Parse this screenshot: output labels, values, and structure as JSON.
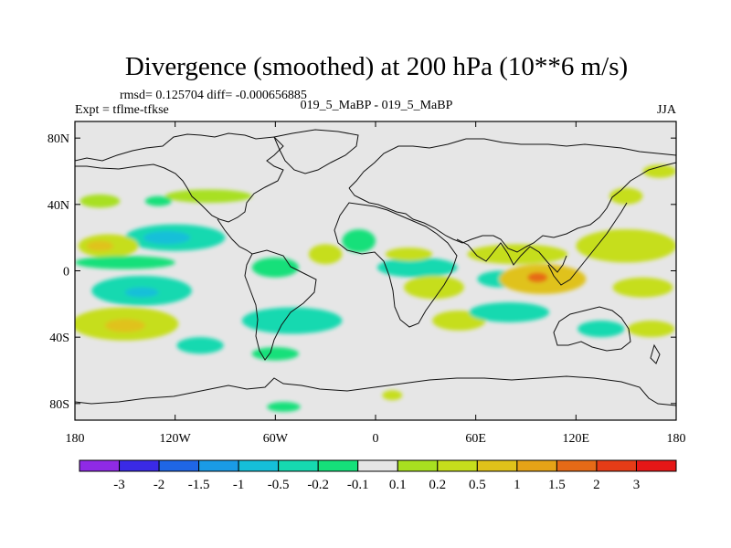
{
  "chart_data": {
    "type": "heatmap",
    "title": "Divergence (smoothed) at 200 hPa (10**6 m/s)",
    "stats_left": "rmsd= 0.125704 diff= -0.000656885",
    "expt_label": "Expt = tflme-tfkse",
    "case_label": "019_5_MaBP - 019_5_MaBP",
    "season_label": "JJA",
    "xlim": [
      -180,
      180
    ],
    "ylim": [
      -90,
      90
    ],
    "x_ticks": [
      {
        "value": -180,
        "label": "180"
      },
      {
        "value": -120,
        "label": "120W"
      },
      {
        "value": -60,
        "label": "60W"
      },
      {
        "value": 0,
        "label": "0"
      },
      {
        "value": 60,
        "label": "60E"
      },
      {
        "value": 120,
        "label": "120E"
      },
      {
        "value": 180,
        "label": "180"
      }
    ],
    "y_ticks": [
      {
        "value": 80,
        "label": "80N"
      },
      {
        "value": 40,
        "label": "40N"
      },
      {
        "value": 0,
        "label": "0"
      },
      {
        "value": -40,
        "label": "40S"
      },
      {
        "value": -80,
        "label": "80S"
      }
    ],
    "colorbar": {
      "colors": [
        "#8f2ae6",
        "#3a2ae6",
        "#1f66e6",
        "#1a9be6",
        "#15bfd9",
        "#16d9b0",
        "#15e07a",
        "#e6e6e6",
        "#a8e020",
        "#c6de1c",
        "#e0c21a",
        "#e6a317",
        "#e66a17",
        "#e63c17",
        "#e61717"
      ],
      "labels": [
        "-3",
        "-2",
        "-1.5",
        "-1",
        "-0.5",
        "-0.2",
        "-0.1",
        "0.1",
        "0.2",
        "0.5",
        "1",
        "1.5",
        "2",
        "3"
      ]
    },
    "field_blobs": [
      {
        "lon": -100,
        "lat": 45,
        "rx": 26,
        "ry": 4,
        "level": 8
      },
      {
        "lon": -165,
        "lat": 42,
        "rx": 12,
        "ry": 4,
        "level": 8
      },
      {
        "lon": -130,
        "lat": 42,
        "rx": 8,
        "ry": 3,
        "level": 6
      },
      {
        "lon": -120,
        "lat": 20,
        "rx": 30,
        "ry": 8,
        "level": 5
      },
      {
        "lon": -125,
        "lat": 20,
        "rx": 14,
        "ry": 4,
        "level": 4
      },
      {
        "lon": -160,
        "lat": 15,
        "rx": 18,
        "ry": 7,
        "level": 9
      },
      {
        "lon": -165,
        "lat": 15,
        "rx": 8,
        "ry": 3,
        "level": 10
      },
      {
        "lon": -150,
        "lat": 5,
        "rx": 30,
        "ry": 4,
        "level": 6
      },
      {
        "lon": -140,
        "lat": -12,
        "rx": 30,
        "ry": 9,
        "level": 5
      },
      {
        "lon": -140,
        "lat": -13,
        "rx": 10,
        "ry": 3,
        "level": 4
      },
      {
        "lon": -150,
        "lat": -32,
        "rx": 32,
        "ry": 10,
        "level": 9
      },
      {
        "lon": -150,
        "lat": -33,
        "rx": 12,
        "ry": 4,
        "level": 10
      },
      {
        "lon": -105,
        "lat": -45,
        "rx": 14,
        "ry": 5,
        "level": 5
      },
      {
        "lon": -60,
        "lat": 2,
        "rx": 14,
        "ry": 6,
        "level": 6
      },
      {
        "lon": -30,
        "lat": 10,
        "rx": 10,
        "ry": 6,
        "level": 9
      },
      {
        "lon": -10,
        "lat": 18,
        "rx": 10,
        "ry": 7,
        "level": 6
      },
      {
        "lon": -50,
        "lat": -30,
        "rx": 30,
        "ry": 8,
        "level": 5
      },
      {
        "lon": -60,
        "lat": -50,
        "rx": 14,
        "ry": 4,
        "level": 6
      },
      {
        "lon": 25,
        "lat": 2,
        "rx": 24,
        "ry": 6,
        "level": 5
      },
      {
        "lon": 20,
        "lat": 10,
        "rx": 14,
        "ry": 4,
        "level": 9
      },
      {
        "lon": 35,
        "lat": -10,
        "rx": 18,
        "ry": 7,
        "level": 9
      },
      {
        "lon": 50,
        "lat": -30,
        "rx": 16,
        "ry": 6,
        "level": 9
      },
      {
        "lon": 85,
        "lat": 10,
        "rx": 30,
        "ry": 6,
        "level": 9
      },
      {
        "lon": 75,
        "lat": -5,
        "rx": 14,
        "ry": 5,
        "level": 5
      },
      {
        "lon": 100,
        "lat": -5,
        "rx": 26,
        "ry": 9,
        "level": 10
      },
      {
        "lon": 97,
        "lat": -4,
        "rx": 6,
        "ry": 3,
        "level": 12
      },
      {
        "lon": 80,
        "lat": -25,
        "rx": 24,
        "ry": 6,
        "level": 5
      },
      {
        "lon": 150,
        "lat": 15,
        "rx": 30,
        "ry": 10,
        "level": 9
      },
      {
        "lon": 160,
        "lat": -10,
        "rx": 18,
        "ry": 6,
        "level": 9
      },
      {
        "lon": 135,
        "lat": -35,
        "rx": 14,
        "ry": 5,
        "level": 5
      },
      {
        "lon": 165,
        "lat": -35,
        "rx": 14,
        "ry": 5,
        "level": 9
      },
      {
        "lon": 150,
        "lat": 45,
        "rx": 10,
        "ry": 5,
        "level": 9
      },
      {
        "lon": 170,
        "lat": 60,
        "rx": 10,
        "ry": 4,
        "level": 9
      },
      {
        "lon": -55,
        "lat": -82,
        "rx": 10,
        "ry": 3,
        "level": 6
      },
      {
        "lon": 10,
        "lat": -75,
        "rx": 6,
        "ry": 3,
        "level": 9
      }
    ]
  }
}
